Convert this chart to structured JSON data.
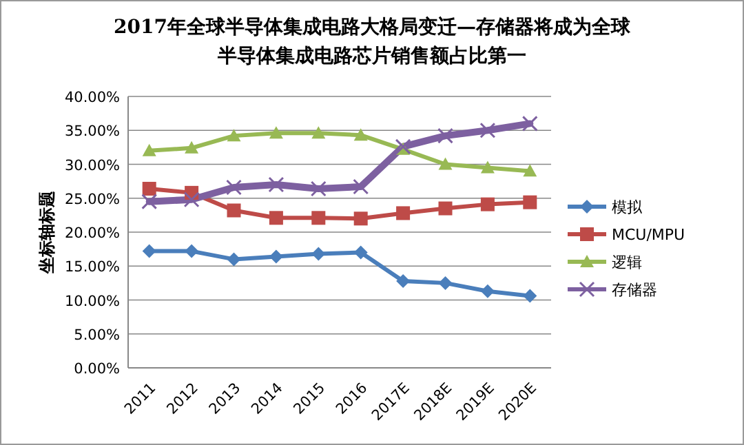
{
  "chart_data": {
    "type": "line",
    "title": "2017年全球半导体集成电路大格局变迁—存储器将成为全球",
    "subtitle": "半导体集成电路芯片销售额占比第一",
    "ylabel": "坐标轴标题",
    "categories": [
      "2011",
      "2012",
      "2013",
      "2014",
      "2015",
      "2016",
      "2017E",
      "2018E",
      "2019E",
      "2020E"
    ],
    "ylim": [
      0,
      40
    ],
    "yticks": [
      {
        "value": 0,
        "label": "0.00%"
      },
      {
        "value": 5,
        "label": "5.00%"
      },
      {
        "value": 10,
        "label": "10.00%"
      },
      {
        "value": 15,
        "label": "15.00%"
      },
      {
        "value": 20,
        "label": "20.00%"
      },
      {
        "value": 25,
        "label": "25.00%"
      },
      {
        "value": 30,
        "label": "30.00%"
      },
      {
        "value": 35,
        "label": "35.00%"
      },
      {
        "value": 40,
        "label": "40.00%"
      }
    ],
    "grid": "y",
    "legend": "right",
    "series": [
      {
        "name": "模拟",
        "color": "#4a7ebb",
        "marker": "diamond",
        "values": [
          17.2,
          17.2,
          16.0,
          16.4,
          16.8,
          17.0,
          12.8,
          12.5,
          11.3,
          10.6
        ]
      },
      {
        "name": "MCU/MPU",
        "color": "#be4b48",
        "marker": "square",
        "values": [
          26.4,
          25.8,
          23.2,
          22.1,
          22.1,
          22.0,
          22.8,
          23.5,
          24.1,
          24.4
        ]
      },
      {
        "name": "逻辑",
        "color": "#98b954",
        "marker": "triangle",
        "values": [
          32.0,
          32.4,
          34.2,
          34.6,
          34.6,
          34.3,
          32.2,
          30.0,
          29.5,
          29.0
        ]
      },
      {
        "name": "存储器",
        "color": "#7d60a0",
        "marker": "cross",
        "values": [
          24.5,
          24.8,
          26.6,
          27.0,
          26.4,
          26.7,
          32.6,
          34.2,
          35.0,
          36.0
        ]
      }
    ]
  }
}
